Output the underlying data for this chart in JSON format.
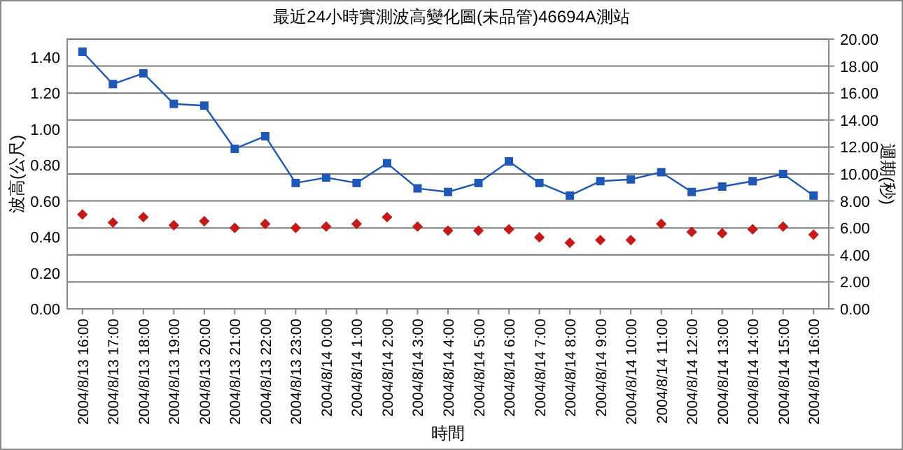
{
  "chart_data": {
    "type": "line",
    "title": "最近24小時實測波高變化圖(未品管)46694A測站",
    "xlabel": "時間",
    "ylabel": "波高(公尺)",
    "y2label": "週期(秒)",
    "categories": [
      "2004/8/13 16:00",
      "2004/8/13 17:00",
      "2004/8/13 18:00",
      "2004/8/13 19:00",
      "2004/8/13 20:00",
      "2004/8/13 21:00",
      "2004/8/13 22:00",
      "2004/8/13 23:00",
      "2004/8/14 0:00",
      "2004/8/14 1:00",
      "2004/8/14 2:00",
      "2004/8/14 3:00",
      "2004/8/14 4:00",
      "2004/8/14 5:00",
      "2004/8/14 6:00",
      "2004/8/14 7:00",
      "2004/8/14 8:00",
      "2004/8/14 9:00",
      "2004/8/14 10:00",
      "2004/8/14 11:00",
      "2004/8/14 12:00",
      "2004/8/14 13:00",
      "2004/8/14 14:00",
      "2004/8/14 15:00",
      "2004/8/14 16:00"
    ],
    "series": [
      {
        "type": "line",
        "color": "#1f57b5",
        "marker": "square",
        "values": [
          1.43,
          1.25,
          1.31,
          1.14,
          1.13,
          0.89,
          0.96,
          0.7,
          0.73,
          0.7,
          0.81,
          0.67,
          0.65,
          0.7,
          0.82,
          0.7,
          0.63,
          0.71,
          0.72,
          0.76,
          0.65,
          0.68,
          0.71,
          0.75,
          0.63
        ]
      },
      {
        "type": "scatter",
        "axis": "y2",
        "color": "#c41a1a",
        "marker": "diamond",
        "values": [
          7.0,
          6.4,
          6.8,
          6.2,
          6.5,
          6.0,
          6.3,
          6.0,
          6.1,
          6.3,
          6.8,
          6.1,
          5.8,
          5.8,
          5.9,
          5.3,
          4.9,
          5.1,
          5.1,
          6.3,
          5.7,
          5.6,
          5.9,
          6.1,
          5.5
        ]
      }
    ],
    "ylim": [
      0,
      1.5
    ],
    "yticks": [
      {
        "value": 0,
        "label": "0.00"
      },
      {
        "value": 0.2,
        "label": "0.20"
      },
      {
        "value": 0.4,
        "label": "0.40"
      },
      {
        "value": 0.6,
        "label": "0.60"
      },
      {
        "value": 0.8,
        "label": "0.80"
      },
      {
        "value": 1.0,
        "label": "1.00"
      },
      {
        "value": 1.2,
        "label": "1.20"
      },
      {
        "value": 1.4,
        "label": "1.40"
      }
    ],
    "y2lim": [
      0,
      20
    ],
    "y2ticks": [
      {
        "value": 0,
        "label": "0.00"
      },
      {
        "value": 2,
        "label": "2.00"
      },
      {
        "value": 4,
        "label": "4.00"
      },
      {
        "value": 6,
        "label": "6.00"
      },
      {
        "value": 8,
        "label": "8.00"
      },
      {
        "value": 10,
        "label": "10.00"
      },
      {
        "value": 12,
        "label": "12.00"
      },
      {
        "value": 14,
        "label": "14.00"
      },
      {
        "value": 16,
        "label": "16.00"
      },
      {
        "value": 18,
        "label": "18.00"
      },
      {
        "value": 20,
        "label": "20.00"
      }
    ],
    "grid": "y"
  }
}
